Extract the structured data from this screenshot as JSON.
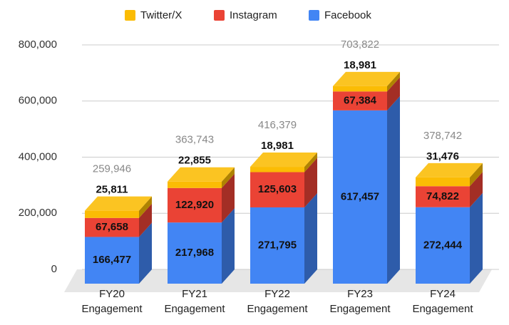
{
  "chart_data": {
    "type": "bar",
    "stacked": true,
    "three_d": true,
    "categories": [
      "FY20 Engagement",
      "FY21 Engagement",
      "FY22 Engagement",
      "FY23 Engagement",
      "FY24 Engagement"
    ],
    "series": [
      {
        "name": "Facebook",
        "color": "#4285f4",
        "values": [
          166477,
          217968,
          271795,
          617457,
          272444
        ],
        "value_labels": [
          "166,477",
          "217,968",
          "271,795",
          "617,457",
          "272,444"
        ]
      },
      {
        "name": "Instagram",
        "color": "#ea4335",
        "values": [
          67658,
          122920,
          125603,
          67384,
          74822
        ],
        "value_labels": [
          "67,658",
          "122,920",
          "125,603",
          "67,384",
          "74,822"
        ]
      },
      {
        "name": "Twitter/X",
        "color": "#fbbc04",
        "values": [
          25811,
          22855,
          18981,
          18981,
          31476
        ],
        "value_labels": [
          "25,811",
          "22,855",
          "18,981",
          "18,981",
          "31,476"
        ]
      }
    ],
    "totals": {
      "values": [
        259946,
        363743,
        416379,
        703822,
        378742
      ],
      "value_labels": [
        "259,946",
        "363,743",
        "416,379",
        "703,822",
        "378,742"
      ]
    },
    "ylim": [
      0,
      800000
    ],
    "yticks": [
      0,
      {
        "value": 200000,
        "label": "200,000"
      },
      {
        "value": 400000,
        "label": "400,000"
      },
      {
        "value": 600000,
        "label": "600,000"
      },
      {
        "value": 800000,
        "label": "800,000"
      }
    ],
    "grid": true,
    "legend": "top"
  }
}
